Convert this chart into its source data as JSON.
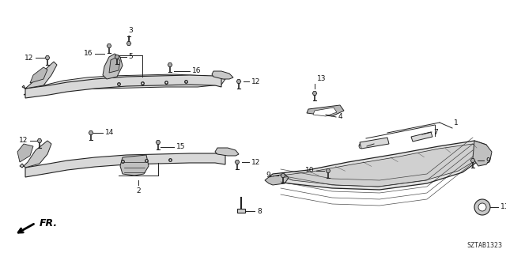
{
  "background_color": "#ffffff",
  "diagram_id": "SZTAB1323",
  "line_color": "#222222",
  "label_color": "#111111",
  "font_size": 6.5
}
